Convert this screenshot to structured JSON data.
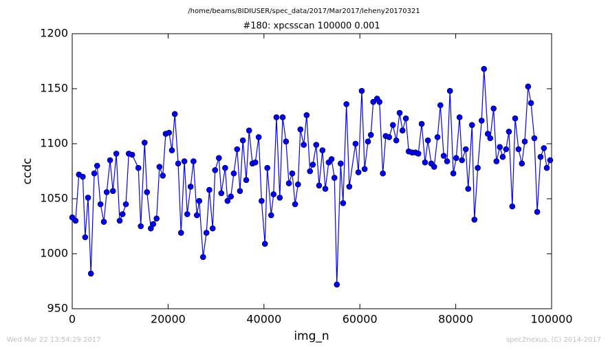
{
  "chart_data": {
    "type": "line",
    "title": "/home/beams/8IDIUSER/spec_data/2017/Mar2017/leheny20170321",
    "subtitle": "#180: xpcsscan 100000 0.001",
    "xlabel": "img_n",
    "ylabel": "ccdc",
    "annotations": [
      "Wed Mar 22 13:54:29 2017",
      "spec2nexus, (C) 2014-2017"
    ],
    "color": "#0000ff",
    "marker_color": "#0000ff",
    "x": [
      0,
      700,
      1400,
      2200,
      2700,
      3300,
      3900,
      4600,
      5200,
      5900,
      6600,
      7200,
      7900,
      8500,
      9200,
      9900,
      10500,
      11200,
      11800,
      12500,
      13800,
      14300,
      15100,
      15600,
      16400,
      16900,
      17600,
      18200,
      18900,
      19500,
      20200,
      20800,
      21400,
      22100,
      22700,
      23400,
      24000,
      24700,
      25300,
      26000,
      26500,
      27300,
      28000,
      28600,
      29300,
      29800,
      30600,
      31100,
      31900,
      32400,
      33100,
      33700,
      34400,
      35000,
      35600,
      36300,
      36900,
      37600,
      38200,
      38900,
      39500,
      40200,
      40700,
      41500,
      42000,
      42600,
      43300,
      43900,
      44600,
      45200,
      45900,
      46500,
      47100,
      47600,
      48300,
      48900,
      49600,
      50200,
      50900,
      51500,
      52200,
      52800,
      53500,
      54100,
      54700,
      55200,
      56000,
      56500,
      57200,
      57800,
      59100,
      59700,
      60400,
      61000,
      61700,
      62300,
      62800,
      63600,
      64100,
      64800,
      65400,
      66100,
      66900,
      67600,
      68300,
      68900,
      69600,
      70200,
      70900,
      71600,
      72200,
      72900,
      73600,
      74200,
      74900,
      75500,
      76200,
      76800,
      77500,
      78200,
      78800,
      79500,
      80100,
      80800,
      81300,
      82100,
      82600,
      83400,
      83900,
      84600,
      85400,
      85900,
      86700,
      87200,
      87900,
      88500,
      89200,
      89800,
      90500,
      91100,
      91800,
      92400,
      93100,
      93800,
      94400,
      95100,
      95700,
      96400,
      97000,
      97700,
      98400,
      99000,
      99700
    ],
    "values": [
      1033,
      1030,
      1072,
      1070,
      1015,
      1051,
      982,
      1073,
      1080,
      1045,
      1029,
      1056,
      1085,
      1057,
      1091,
      1030,
      1036,
      1045,
      1091,
      1090,
      1078,
      1025,
      1101,
      1056,
      1023,
      1027,
      1032,
      1079,
      1071,
      1109,
      1110,
      1094,
      1127,
      1082,
      1019,
      1084,
      1036,
      1061,
      1084,
      1035,
      1048,
      997,
      1019,
      1058,
      1023,
      1076,
      1087,
      1055,
      1078,
      1048,
      1052,
      1073,
      1095,
      1057,
      1103,
      1067,
      1112,
      1082,
      1083,
      1106,
      1048,
      1009,
      1078,
      1035,
      1054,
      1124,
      1051,
      1124,
      1102,
      1064,
      1073,
      1045,
      1063,
      1113,
      1099,
      1126,
      1075,
      1081,
      1099,
      1062,
      1094,
      1059,
      1083,
      1086,
      1069,
      972,
      1082,
      1046,
      1136,
      1061,
      1100,
      1074,
      1148,
      1077,
      1102,
      1108,
      1138,
      1141,
      1138,
      1073,
      1107,
      1106,
      1117,
      1103,
      1128,
      1112,
      1123,
      1093,
      1092,
      1092,
      1091,
      1118,
      1083,
      1103,
      1082,
      1079,
      1106,
      1135,
      1089,
      1084,
      1148,
      1073,
      1087,
      1124,
      1085,
      1095,
      1059,
      1117,
      1031,
      1078,
      1121,
      1168,
      1109,
      1105,
      1132,
      1084,
      1097,
      1088,
      1095,
      1111,
      1043,
      1123,
      1095,
      1082,
      1102,
      1152,
      1137,
      1105,
      1038,
      1088,
      1096,
      1078,
      1085
    ],
    "xlim": [
      0,
      100000
    ],
    "xticks": [
      0,
      20000,
      40000,
      60000,
      80000,
      100000
    ],
    "ylim": [
      950,
      1200
    ],
    "yticks": [
      950,
      1000,
      1050,
      1100,
      1150,
      1200
    ]
  }
}
